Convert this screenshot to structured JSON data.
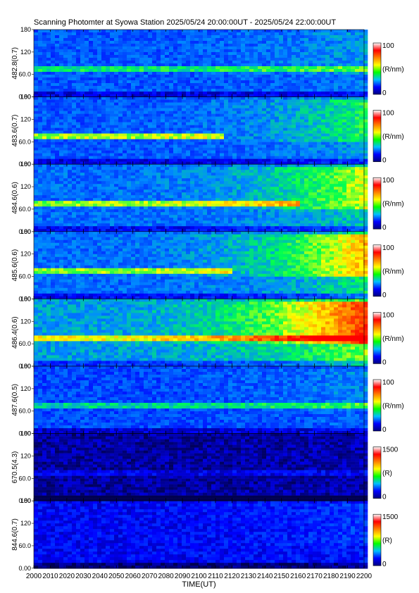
{
  "title": "Scanning Photomter at Syowa Station 2025/05/24 20:00:00UT - 2025/05/24 22:00:00UT",
  "chart_data": {
    "type": "heatmap",
    "xlabel": "TIME(UT)",
    "xlim": [
      2000,
      2200
    ],
    "x_ticks": [
      "2000",
      "2010",
      "2020",
      "2030",
      "2040",
      "2050",
      "2060",
      "2070",
      "2080",
      "2090",
      "2100",
      "2110",
      "2120",
      "2130",
      "2140",
      "2150",
      "2160",
      "2170",
      "2180",
      "2190",
      "2200"
    ],
    "ylim": [
      0,
      180
    ],
    "y_ticks": [
      "0.00",
      "60.0",
      "120",
      "180"
    ],
    "colormap": [
      "#000080",
      "#0000ff",
      "#00c0ff",
      "#00ff00",
      "#ffff00",
      "#ff8000",
      "#ff0000",
      "#ffffff"
    ],
    "panels": [
      {
        "ylabel": "482.8(0.7)",
        "cbar_max": "100",
        "cbar_min": "0",
        "cbar_unit": "(R/nm)",
        "base": 0.3,
        "arc_y": 80,
        "arc": 0.22,
        "arc_end": 2200,
        "bright": 0.1
      },
      {
        "ylabel": "483.6(0.7)",
        "cbar_max": "100",
        "cbar_min": "0",
        "cbar_unit": "(R/nm)",
        "base": 0.3,
        "arc_y": 80,
        "arc": 0.35,
        "arc_end": 2115,
        "bright": 0.25
      },
      {
        "ylabel": "484.6(0.6)",
        "cbar_max": "100",
        "cbar_min": "0",
        "cbar_unit": "(R/nm)",
        "base": 0.33,
        "arc_y": 80,
        "arc": 0.3,
        "arc_end": 2160,
        "bright": 0.35
      },
      {
        "ylabel": "485.6(0.6)",
        "cbar_max": "100",
        "cbar_min": "0",
        "cbar_unit": "(R/nm)",
        "base": 0.33,
        "arc_y": 80,
        "arc": 0.3,
        "arc_end": 2120,
        "bright": 0.45
      },
      {
        "ylabel": "486.4(0.6)",
        "cbar_max": "100",
        "cbar_min": "0",
        "cbar_unit": "(R/nm)",
        "base": 0.4,
        "arc_y": 80,
        "arc": 0.3,
        "arc_end": 2200,
        "bright": 0.55
      },
      {
        "ylabel": "487.6(0.5)",
        "cbar_max": "100",
        "cbar_min": "0",
        "cbar_unit": "(R/nm)",
        "base": 0.28,
        "arc_y": 80,
        "arc": 0.2,
        "arc_end": 2200,
        "bright": 0.1
      },
      {
        "ylabel": "670.5(4.3)",
        "cbar_max": "1500",
        "cbar_min": "0",
        "cbar_unit": "(R)",
        "base": 0.08,
        "arc_y": 80,
        "arc": 0.08,
        "arc_end": 2200,
        "bright": 0.02
      },
      {
        "ylabel": "844.6(0.7)",
        "cbar_max": "1500",
        "cbar_min": "0",
        "cbar_unit": "(R)",
        "base": 0.18,
        "arc_y": 80,
        "arc": 0.0,
        "arc_end": 2200,
        "bright": 0.08
      }
    ]
  }
}
